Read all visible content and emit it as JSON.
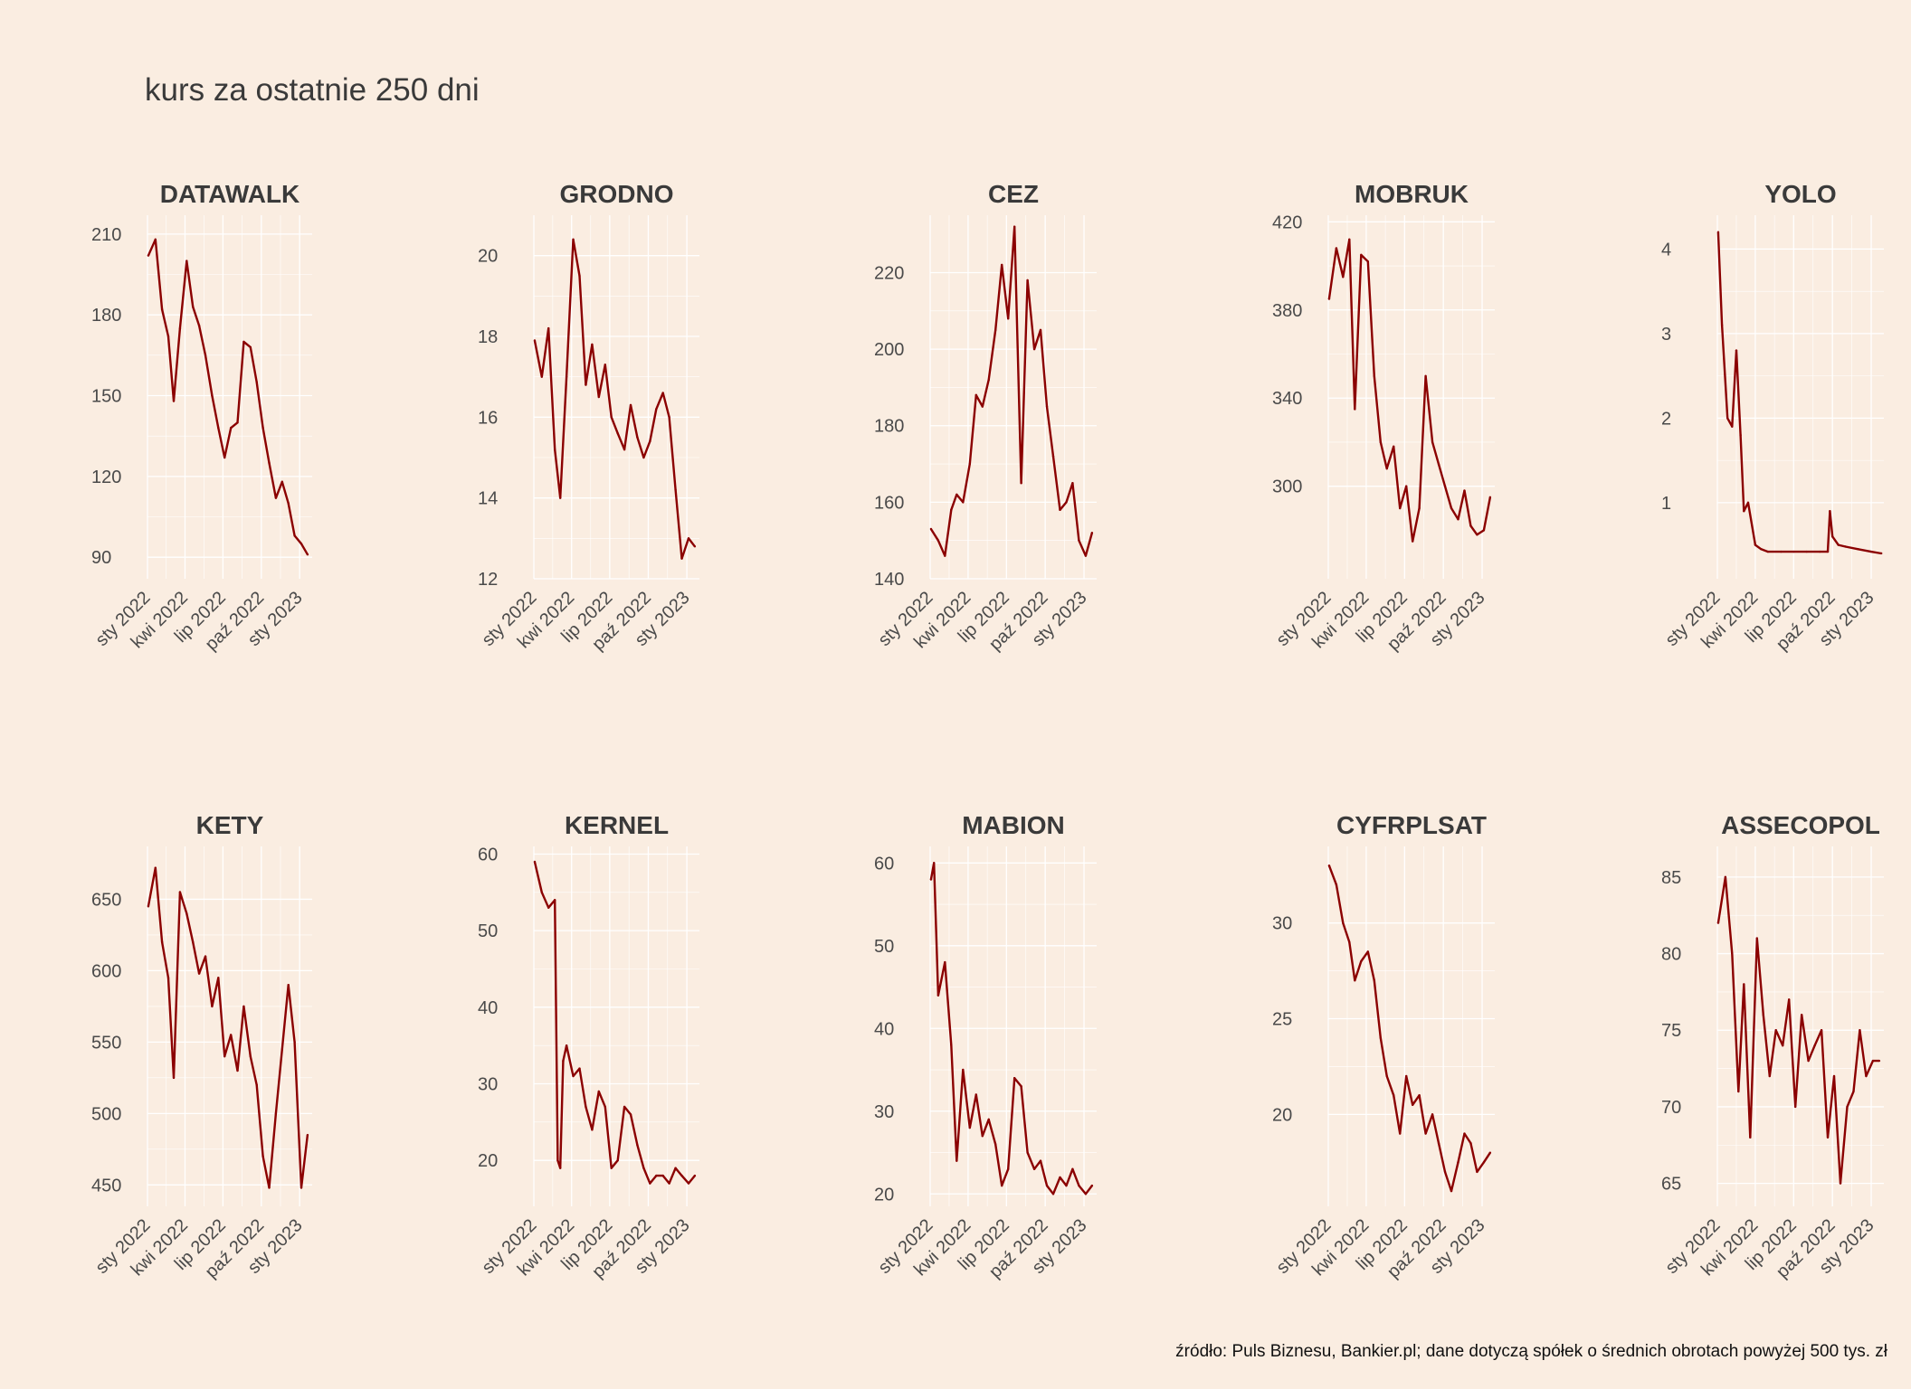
{
  "title": "kurs za ostatnie 250 dni",
  "source": "źródło: Puls Biznesu, Bankier.pl; dane dotyczą spółek o średnich obrotach powyżej 500 tys. zł",
  "colors": {
    "background": "#faede1",
    "line": "#8b0000",
    "grid": "#ffffff"
  },
  "chart_data": [
    {
      "type": "line",
      "title": "DATAWALK",
      "x_range": [
        "2022-01-01",
        "2023-01-31"
      ],
      "x_ticks": [
        "sty 2022",
        "kwi 2022",
        "lip 2022",
        "paź 2022",
        "sty 2023"
      ],
      "y_ticks": [
        90,
        120,
        150,
        180,
        210
      ],
      "ylim": [
        82,
        217
      ],
      "x": [
        "2022-01-03",
        "2022-01-20",
        "2022-02-05",
        "2022-02-20",
        "2022-03-05",
        "2022-03-20",
        "2022-04-05",
        "2022-04-20",
        "2022-05-05",
        "2022-05-20",
        "2022-06-05",
        "2022-06-20",
        "2022-07-05",
        "2022-07-20",
        "2022-08-05",
        "2022-08-20",
        "2022-09-05",
        "2022-09-20",
        "2022-10-05",
        "2022-10-20",
        "2022-11-05",
        "2022-11-20",
        "2022-12-05",
        "2022-12-20",
        "2023-01-05",
        "2023-01-20"
      ],
      "values": [
        202,
        208,
        182,
        172,
        148,
        175,
        200,
        183,
        176,
        165,
        150,
        138,
        127,
        138,
        140,
        170,
        168,
        155,
        138,
        125,
        112,
        118,
        110,
        98,
        95,
        91
      ]
    },
    {
      "type": "line",
      "title": "GRODNO",
      "x_range": [
        "2022-01-01",
        "2023-01-31"
      ],
      "x_ticks": [
        "sty 2022",
        "kwi 2022",
        "lip 2022",
        "paź 2022",
        "sty 2023"
      ],
      "y_ticks": [
        12,
        14,
        16,
        18,
        20
      ],
      "ylim": [
        12,
        21
      ],
      "x": [
        "2022-01-03",
        "2022-01-20",
        "2022-02-05",
        "2022-02-20",
        "2022-03-05",
        "2022-03-20",
        "2022-04-05",
        "2022-04-20",
        "2022-05-05",
        "2022-05-20",
        "2022-06-05",
        "2022-06-20",
        "2022-07-05",
        "2022-07-20",
        "2022-08-05",
        "2022-08-20",
        "2022-09-05",
        "2022-09-20",
        "2022-10-05",
        "2022-10-20",
        "2022-11-05",
        "2022-11-20",
        "2022-12-05",
        "2022-12-20",
        "2023-01-05",
        "2023-01-20"
      ],
      "values": [
        17.9,
        17.0,
        18.2,
        15.2,
        14.0,
        17.0,
        20.4,
        19.5,
        16.8,
        17.8,
        16.5,
        17.3,
        16.0,
        15.6,
        15.2,
        16.3,
        15.5,
        15.0,
        15.4,
        16.2,
        16.6,
        16.0,
        14.2,
        12.5,
        13.0,
        12.8
      ]
    },
    {
      "type": "line",
      "title": "CEZ",
      "x_range": [
        "2022-01-01",
        "2023-01-31"
      ],
      "x_ticks": [
        "sty 2022",
        "kwi 2022",
        "lip 2022",
        "paź 2022",
        "sty 2023"
      ],
      "y_ticks": [
        140,
        160,
        180,
        200,
        220
      ],
      "ylim": [
        140,
        235
      ],
      "x": [
        "2022-01-03",
        "2022-01-20",
        "2022-02-05",
        "2022-02-20",
        "2022-03-05",
        "2022-03-20",
        "2022-04-05",
        "2022-04-20",
        "2022-05-05",
        "2022-05-20",
        "2022-06-05",
        "2022-06-20",
        "2022-07-05",
        "2022-07-20",
        "2022-08-05",
        "2022-08-20",
        "2022-09-05",
        "2022-09-20",
        "2022-10-05",
        "2022-10-20",
        "2022-11-05",
        "2022-11-20",
        "2022-12-05",
        "2022-12-20",
        "2023-01-05",
        "2023-01-20"
      ],
      "values": [
        153,
        150,
        146,
        158,
        162,
        160,
        170,
        188,
        185,
        192,
        205,
        222,
        208,
        232,
        165,
        218,
        200,
        205,
        185,
        172,
        158,
        160,
        165,
        150,
        146,
        152
      ]
    },
    {
      "type": "line",
      "title": "MOBRUK",
      "x_range": [
        "2022-01-01",
        "2023-01-31"
      ],
      "x_ticks": [
        "sty 2022",
        "kwi 2022",
        "lip 2022",
        "paź 2022",
        "sty 2023"
      ],
      "y_ticks": [
        300,
        340,
        380,
        420
      ],
      "ylim": [
        258,
        423
      ],
      "x": [
        "2022-01-03",
        "2022-01-20",
        "2022-02-05",
        "2022-02-20",
        "2022-03-05",
        "2022-03-20",
        "2022-04-05",
        "2022-04-20",
        "2022-05-05",
        "2022-05-20",
        "2022-06-05",
        "2022-06-20",
        "2022-07-05",
        "2022-07-20",
        "2022-08-05",
        "2022-08-20",
        "2022-09-05",
        "2022-09-20",
        "2022-10-05",
        "2022-10-20",
        "2022-11-05",
        "2022-11-20",
        "2022-12-05",
        "2022-12-20",
        "2023-01-05",
        "2023-01-20"
      ],
      "values": [
        385,
        408,
        395,
        412,
        335,
        405,
        402,
        350,
        320,
        308,
        318,
        290,
        300,
        275,
        290,
        350,
        320,
        310,
        300,
        290,
        285,
        298,
        282,
        278,
        280,
        295
      ]
    },
    {
      "type": "line",
      "title": "YOLO",
      "x_range": [
        "2022-01-01",
        "2023-01-31"
      ],
      "x_ticks": [
        "sty 2022",
        "kwi 2022",
        "lip 2022",
        "paź 2022",
        "sty 2023"
      ],
      "y_ticks": [
        1,
        2,
        3,
        4
      ],
      "ylim": [
        0.1,
        4.4
      ],
      "x": [
        "2022-01-03",
        "2022-01-12",
        "2022-01-25",
        "2022-02-05",
        "2022-02-15",
        "2022-02-25",
        "2022-03-05",
        "2022-03-15",
        "2022-04-01",
        "2022-04-15",
        "2022-05-01",
        "2022-06-01",
        "2022-07-01",
        "2022-08-01",
        "2022-09-01",
        "2022-09-20",
        "2022-09-25",
        "2022-10-01",
        "2022-10-15",
        "2022-11-01",
        "2022-12-01",
        "2023-01-01",
        "2023-01-25"
      ],
      "values": [
        4.2,
        3.1,
        2.0,
        1.9,
        2.8,
        1.8,
        0.9,
        1.0,
        0.5,
        0.45,
        0.42,
        0.42,
        0.42,
        0.42,
        0.42,
        0.42,
        0.9,
        0.6,
        0.5,
        0.48,
        0.45,
        0.42,
        0.4
      ]
    },
    {
      "type": "line",
      "title": "KETY",
      "x_range": [
        "2022-01-01",
        "2023-01-31"
      ],
      "x_ticks": [
        "sty 2022",
        "kwi 2022",
        "lip 2022",
        "paź 2022",
        "sty 2023"
      ],
      "y_ticks": [
        450,
        500,
        550,
        600,
        650
      ],
      "ylim": [
        435,
        687
      ],
      "x": [
        "2022-01-03",
        "2022-01-20",
        "2022-02-05",
        "2022-02-20",
        "2022-03-05",
        "2022-03-20",
        "2022-04-05",
        "2022-04-20",
        "2022-05-05",
        "2022-05-20",
        "2022-06-05",
        "2022-06-20",
        "2022-07-05",
        "2022-07-20",
        "2022-08-05",
        "2022-08-20",
        "2022-09-05",
        "2022-09-20",
        "2022-10-05",
        "2022-10-20",
        "2022-11-05",
        "2022-11-20",
        "2022-12-05",
        "2022-12-20",
        "2023-01-05",
        "2023-01-20"
      ],
      "values": [
        645,
        672,
        620,
        595,
        525,
        655,
        640,
        620,
        598,
        610,
        575,
        595,
        540,
        555,
        530,
        575,
        540,
        520,
        470,
        448,
        500,
        545,
        590,
        550,
        448,
        485
      ]
    },
    {
      "type": "line",
      "title": "KERNEL",
      "x_range": [
        "2022-01-01",
        "2023-01-31"
      ],
      "x_ticks": [
        "sty 2022",
        "kwi 2022",
        "lip 2022",
        "paź 2022",
        "sty 2023"
      ],
      "y_ticks": [
        20,
        30,
        40,
        50,
        60
      ],
      "ylim": [
        14,
        61
      ],
      "x": [
        "2022-01-03",
        "2022-01-20",
        "2022-02-05",
        "2022-02-20",
        "2022-02-27",
        "2022-03-05",
        "2022-03-12",
        "2022-03-20",
        "2022-04-05",
        "2022-04-20",
        "2022-05-05",
        "2022-05-20",
        "2022-06-05",
        "2022-06-20",
        "2022-07-05",
        "2022-07-20",
        "2022-08-05",
        "2022-08-20",
        "2022-09-05",
        "2022-09-20",
        "2022-10-05",
        "2022-10-20",
        "2022-11-05",
        "2022-11-20",
        "2022-12-05",
        "2022-12-20",
        "2023-01-05",
        "2023-01-20"
      ],
      "values": [
        59,
        55,
        53,
        54,
        20,
        19,
        33,
        35,
        31,
        32,
        27,
        24,
        29,
        27,
        19,
        20,
        27,
        26,
        22,
        19,
        17,
        18,
        18,
        17,
        19,
        18,
        17,
        18
      ]
    },
    {
      "type": "line",
      "title": "MABION",
      "x_range": [
        "2022-01-01",
        "2023-01-31"
      ],
      "x_ticks": [
        "sty 2022",
        "kwi 2022",
        "lip 2022",
        "paź 2022",
        "sty 2023"
      ],
      "y_ticks": [
        20,
        30,
        40,
        50,
        60
      ],
      "ylim": [
        18.5,
        62
      ],
      "x": [
        "2022-01-03",
        "2022-01-10",
        "2022-01-20",
        "2022-02-05",
        "2022-02-20",
        "2022-03-05",
        "2022-03-20",
        "2022-04-05",
        "2022-04-20",
        "2022-05-05",
        "2022-05-20",
        "2022-06-05",
        "2022-06-20",
        "2022-07-05",
        "2022-07-20",
        "2022-08-05",
        "2022-08-20",
        "2022-09-05",
        "2022-09-20",
        "2022-10-05",
        "2022-10-20",
        "2022-11-05",
        "2022-11-20",
        "2022-12-05",
        "2022-12-20",
        "2023-01-05",
        "2023-01-20"
      ],
      "values": [
        58,
        60,
        44,
        48,
        38,
        24,
        35,
        28,
        32,
        27,
        29,
        26,
        21,
        23,
        34,
        33,
        25,
        23,
        24,
        21,
        20,
        22,
        21,
        23,
        21,
        20,
        21
      ]
    },
    {
      "type": "line",
      "title": "CYFRPLSAT",
      "x_range": [
        "2022-01-01",
        "2023-01-31"
      ],
      "x_ticks": [
        "sty 2022",
        "kwi 2022",
        "lip 2022",
        "paź 2022",
        "sty 2023"
      ],
      "y_ticks": [
        20,
        25,
        30
      ],
      "ylim": [
        15.2,
        34
      ],
      "x": [
        "2022-01-03",
        "2022-01-20",
        "2022-02-05",
        "2022-02-20",
        "2022-03-05",
        "2022-03-20",
        "2022-04-05",
        "2022-04-20",
        "2022-05-05",
        "2022-05-20",
        "2022-06-05",
        "2022-06-20",
        "2022-07-05",
        "2022-07-20",
        "2022-08-05",
        "2022-08-20",
        "2022-09-05",
        "2022-09-20",
        "2022-10-05",
        "2022-10-20",
        "2022-11-05",
        "2022-11-20",
        "2022-12-05",
        "2022-12-20",
        "2023-01-05",
        "2023-01-20"
      ],
      "values": [
        33,
        32,
        30,
        29,
        27,
        28,
        28.5,
        27,
        24,
        22,
        21,
        19,
        22,
        20.5,
        21,
        19,
        20,
        18.5,
        17,
        16,
        17.5,
        19,
        18.5,
        17,
        17.5,
        18
      ]
    },
    {
      "type": "line",
      "title": "ASSECOPOL",
      "x_range": [
        "2022-01-01",
        "2023-01-31"
      ],
      "x_ticks": [
        "sty 2022",
        "kwi 2022",
        "lip 2022",
        "paź 2022",
        "sty 2023"
      ],
      "y_ticks": [
        65,
        70,
        75,
        80,
        85
      ],
      "ylim": [
        63.5,
        87
      ],
      "x": [
        "2022-01-03",
        "2022-01-20",
        "2022-02-05",
        "2022-02-20",
        "2022-03-05",
        "2022-03-20",
        "2022-04-05",
        "2022-04-20",
        "2022-05-05",
        "2022-05-20",
        "2022-06-05",
        "2022-06-20",
        "2022-07-05",
        "2022-07-20",
        "2022-08-05",
        "2022-08-20",
        "2022-09-05",
        "2022-09-20",
        "2022-10-05",
        "2022-10-20",
        "2022-11-05",
        "2022-11-20",
        "2022-12-05",
        "2022-12-20",
        "2023-01-05",
        "2023-01-20"
      ],
      "values": [
        82,
        85,
        80,
        71,
        78,
        68,
        81,
        76,
        72,
        75,
        74,
        77,
        70,
        76,
        73,
        74,
        75,
        68,
        72,
        65,
        70,
        71,
        75,
        72,
        73,
        73
      ]
    }
  ]
}
